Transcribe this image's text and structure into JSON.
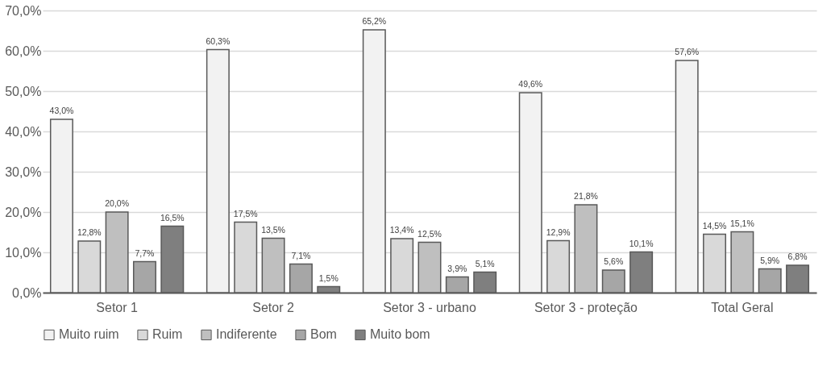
{
  "chart_data": {
    "type": "bar",
    "categories": [
      "Setor 1",
      "Setor 2",
      "Setor 3 - urbano",
      "Setor 3 - proteção",
      "Total Geral"
    ],
    "series": [
      {
        "name": "Muito ruim",
        "color": "#f2f2f2",
        "values": [
          43.0,
          60.3,
          65.2,
          49.6,
          57.6
        ],
        "value_labels": [
          "43,0%",
          "60,3%",
          "65,2%",
          "49,6%",
          "57,6%"
        ]
      },
      {
        "name": "Ruim",
        "color": "#d9d9d9",
        "values": [
          12.8,
          17.5,
          13.4,
          12.9,
          14.5
        ],
        "value_labels": [
          "12,8%",
          "17,5%",
          "13,4%",
          "12,9%",
          "14,5%"
        ]
      },
      {
        "name": "Indiferente",
        "color": "#bfbfbf",
        "values": [
          20.0,
          13.5,
          12.5,
          21.8,
          15.1
        ],
        "value_labels": [
          "20,0%",
          "13,5%",
          "12,5%",
          "21,8%",
          "15,1%"
        ]
      },
      {
        "name": "Bom",
        "color": "#a6a6a6",
        "values": [
          7.7,
          7.1,
          3.9,
          5.6,
          5.9
        ],
        "value_labels": [
          "7,7%",
          "7,1%",
          "3,9%",
          "5,6%",
          "5,9%"
        ]
      },
      {
        "name": "Muito bom",
        "color": "#7f7f7f",
        "values": [
          16.5,
          1.5,
          5.1,
          10.1,
          6.8
        ],
        "value_labels": [
          "16,5%",
          "1,5%",
          "5,1%",
          "10,1%",
          "6,8%"
        ]
      }
    ],
    "ylim": [
      0,
      70
    ],
    "yticks": [
      {
        "value": 0,
        "label": "0,0%"
      },
      {
        "value": 10,
        "label": "10,0%"
      },
      {
        "value": 20,
        "label": "20,0%"
      },
      {
        "value": 30,
        "label": "30,0%"
      },
      {
        "value": 40,
        "label": "40,0%"
      },
      {
        "value": 50,
        "label": "50,0%"
      },
      {
        "value": 60,
        "label": "60,0%"
      },
      {
        "value": 70,
        "label": "70,0%"
      }
    ],
    "grid": "y",
    "legend": "bottom"
  }
}
